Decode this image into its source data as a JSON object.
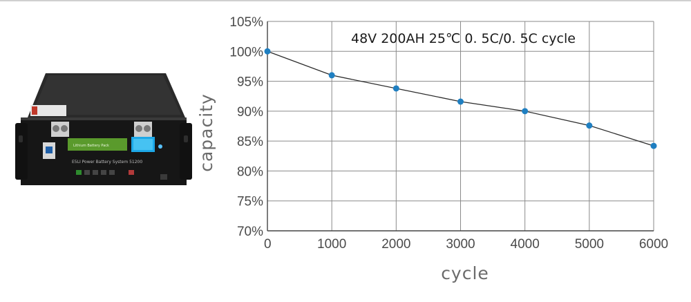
{
  "product_image": {
    "label": "Battery rack module",
    "panel_text": "E5LI Power Battery System 51200",
    "bms_label": "Lithium Battery Pack"
  },
  "chart_data": {
    "type": "line",
    "title": "48V 200AH 25℃  0. 5C/0. 5C  cycle",
    "xlabel": "cycle",
    "ylabel": "capacity",
    "x": [
      0,
      1000,
      2000,
      3000,
      4000,
      5000,
      6000
    ],
    "series": [
      {
        "name": "capacity",
        "values": [
          100,
          96,
          93.8,
          91.6,
          90,
          87.6,
          84.2
        ]
      }
    ],
    "xlim": [
      0,
      6000
    ],
    "ylim": [
      70,
      105
    ],
    "xticks": [
      "0",
      "1000",
      "2000",
      "3000",
      "4000",
      "5000",
      "6000"
    ],
    "yticks": [
      "70%",
      "75%",
      "80%",
      "85%",
      "90%",
      "95%",
      "100%",
      "105%"
    ],
    "grid": true,
    "line_color": "#2b2b2b",
    "marker_color": "#1f7fc1",
    "grid_color": "#8a8a8a"
  }
}
